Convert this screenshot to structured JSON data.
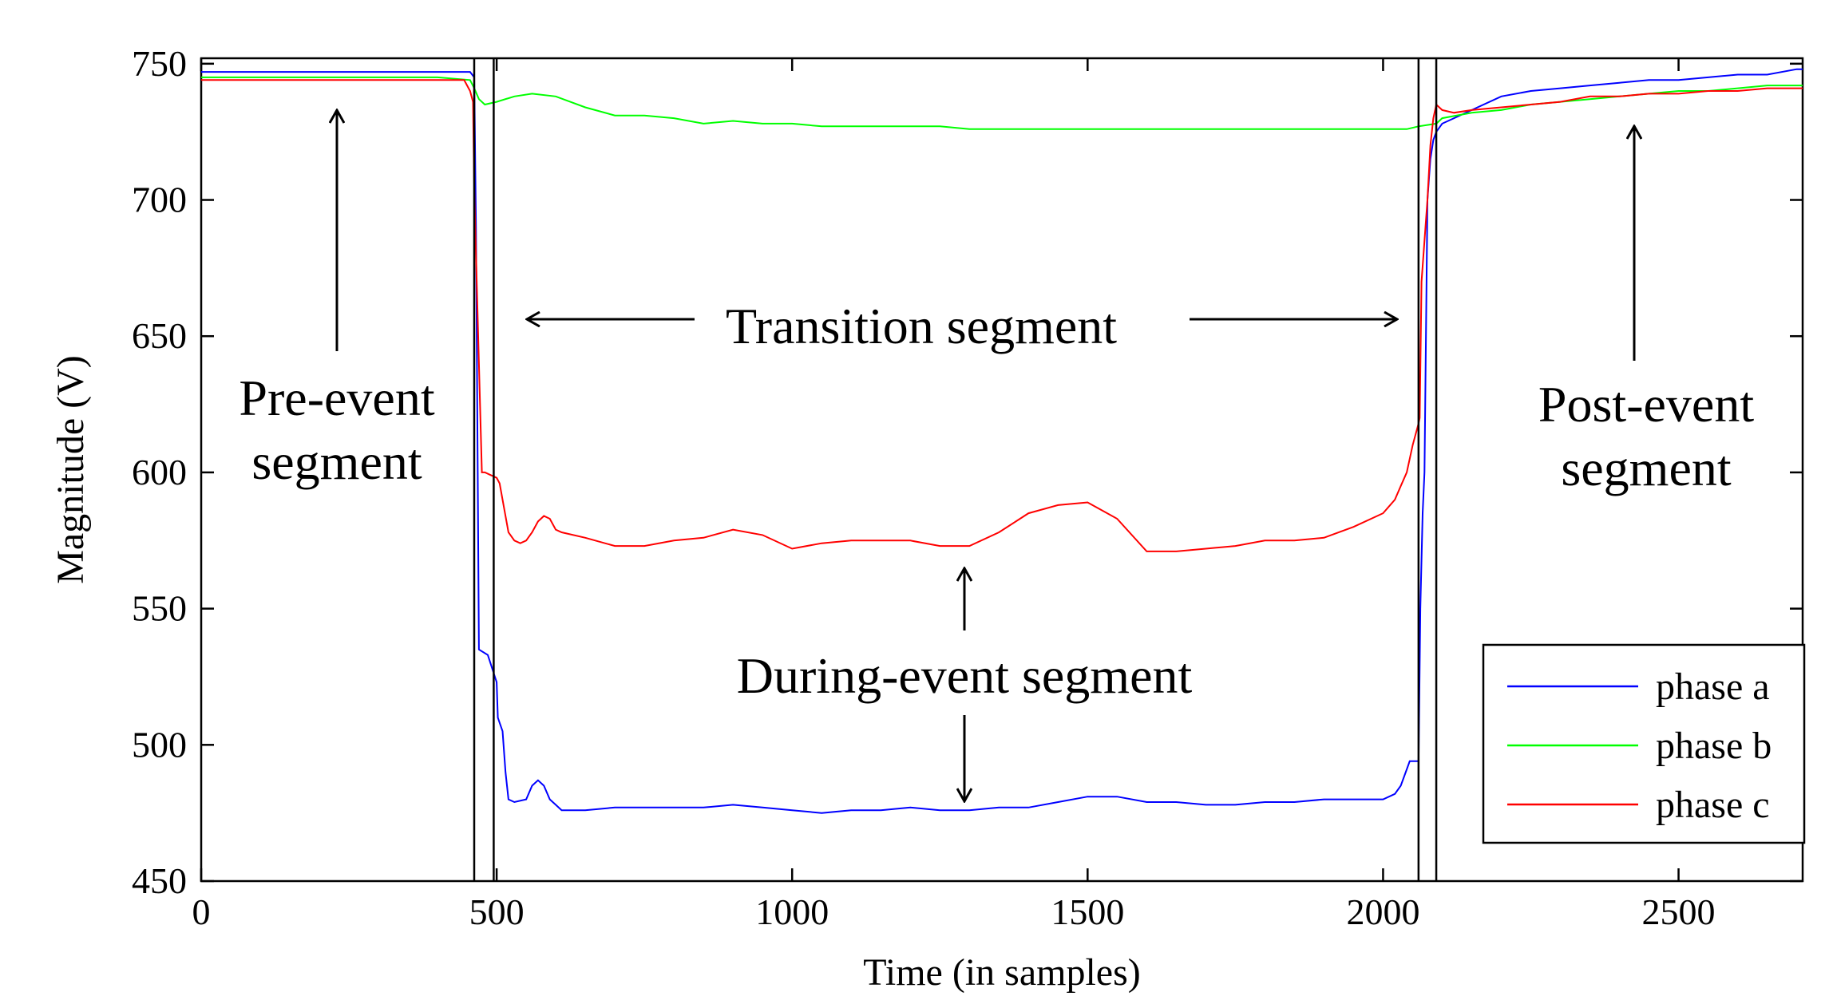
{
  "chart_data": {
    "type": "line",
    "title": "",
    "xlabel": "Time (in samples)",
    "ylabel": "Magnitude (V)",
    "xlim": [
      0,
      2710
    ],
    "ylim": [
      450,
      752
    ],
    "xticks": [
      0,
      500,
      1000,
      1500,
      2000,
      2500
    ],
    "yticks": [
      450,
      500,
      550,
      600,
      650,
      700,
      750
    ],
    "grid": false,
    "legend_position": "bottom-right",
    "boundaries": [
      462,
      495,
      2060,
      2090
    ],
    "series": [
      {
        "name": "phase a",
        "color": "#0000ff",
        "x": [
          0,
          455,
          462,
          465,
          468,
          470,
          485,
          500,
          502,
          510,
          515,
          520,
          530,
          550,
          560,
          570,
          580,
          590,
          600,
          610,
          650,
          700,
          750,
          800,
          850,
          900,
          950,
          1000,
          1050,
          1100,
          1150,
          1200,
          1250,
          1300,
          1350,
          1400,
          1450,
          1500,
          1550,
          1600,
          1650,
          1700,
          1750,
          1800,
          1850,
          1900,
          1950,
          2000,
          2020,
          2030,
          2040,
          2045,
          2050,
          2060,
          2063,
          2067,
          2070,
          2075,
          2080,
          2085,
          2090,
          2100,
          2120,
          2150,
          2200,
          2250,
          2300,
          2350,
          2400,
          2450,
          2500,
          2550,
          2600,
          2650,
          2700,
          2710
        ],
        "y": [
          747,
          747,
          745,
          690,
          600,
          535,
          533,
          523,
          510,
          505,
          490,
          480,
          479,
          480,
          485,
          487,
          485,
          480,
          478,
          476,
          476,
          477,
          477,
          477,
          477,
          478,
          477,
          476,
          475,
          476,
          476,
          477,
          476,
          476,
          477,
          477,
          479,
          481,
          481,
          479,
          479,
          478,
          478,
          479,
          479,
          480,
          480,
          480,
          482,
          485,
          491,
          494,
          494,
          494,
          550,
          585,
          600,
          700,
          715,
          722,
          725,
          728,
          730,
          733,
          738,
          740,
          741,
          742,
          743,
          744,
          744,
          745,
          746,
          746,
          748,
          748
        ]
      },
      {
        "name": "phase b",
        "color": "#00ff00",
        "x": [
          0,
          100,
          200,
          300,
          400,
          455,
          462,
          470,
          480,
          500,
          530,
          560,
          600,
          650,
          700,
          750,
          800,
          850,
          900,
          950,
          1000,
          1050,
          1100,
          1150,
          1200,
          1250,
          1300,
          1350,
          1400,
          1450,
          1500,
          1550,
          1600,
          1650,
          1700,
          1750,
          1800,
          1850,
          1900,
          1950,
          2000,
          2040,
          2060,
          2090,
          2100,
          2150,
          2200,
          2250,
          2300,
          2350,
          2400,
          2450,
          2500,
          2550,
          2600,
          2650,
          2700,
          2710
        ],
        "y": [
          745,
          745,
          745,
          745,
          745,
          744,
          741,
          737,
          735,
          736,
          738,
          739,
          738,
          734,
          731,
          731,
          730,
          728,
          729,
          728,
          728,
          727,
          727,
          727,
          727,
          727,
          726,
          726,
          726,
          726,
          726,
          726,
          726,
          726,
          726,
          726,
          726,
          726,
          726,
          726,
          726,
          726,
          727,
          728,
          730,
          732,
          733,
          735,
          736,
          737,
          738,
          739,
          740,
          740,
          741,
          742,
          742,
          742
        ]
      },
      {
        "name": "phase c",
        "color": "#ff0000",
        "x": [
          0,
          100,
          200,
          300,
          400,
          445,
          455,
          460,
          462,
          465,
          470,
          475,
          480,
          490,
          500,
          505,
          510,
          520,
          530,
          540,
          550,
          560,
          570,
          580,
          590,
          600,
          610,
          650,
          700,
          750,
          800,
          850,
          900,
          950,
          1000,
          1050,
          1100,
          1150,
          1200,
          1250,
          1300,
          1350,
          1400,
          1450,
          1500,
          1550,
          1600,
          1650,
          1700,
          1750,
          1800,
          1850,
          1900,
          1950,
          2000,
          2020,
          2030,
          2040,
          2050,
          2060,
          2062,
          2065,
          2070,
          2075,
          2080,
          2085,
          2090,
          2100,
          2120,
          2150,
          2200,
          2250,
          2300,
          2350,
          2400,
          2450,
          2500,
          2550,
          2600,
          2650,
          2700,
          2710
        ],
        "y": [
          744,
          744,
          744,
          744,
          744,
          744,
          740,
          736,
          705,
          680,
          640,
          600,
          600,
          599,
          598,
          596,
          590,
          578,
          575,
          574,
          575,
          578,
          582,
          584,
          583,
          579,
          578,
          576,
          573,
          573,
          575,
          576,
          579,
          577,
          572,
          574,
          575,
          575,
          575,
          573,
          573,
          578,
          585,
          588,
          589,
          583,
          571,
          571,
          572,
          573,
          575,
          575,
          576,
          580,
          585,
          590,
          595,
          600,
          610,
          618,
          620,
          670,
          685,
          700,
          720,
          730,
          735,
          733,
          732,
          733,
          734,
          735,
          736,
          738,
          738,
          739,
          739,
          740,
          740,
          741,
          741,
          741
        ]
      }
    ],
    "annotations": [
      {
        "id": "pre-event",
        "lines": [
          "Pre-event",
          "segment"
        ]
      },
      {
        "id": "transition",
        "lines": [
          "Transition segment"
        ]
      },
      {
        "id": "during-event",
        "lines": [
          "During-event segment"
        ]
      },
      {
        "id": "post-event",
        "lines": [
          "Post-event",
          "segment"
        ]
      }
    ]
  }
}
